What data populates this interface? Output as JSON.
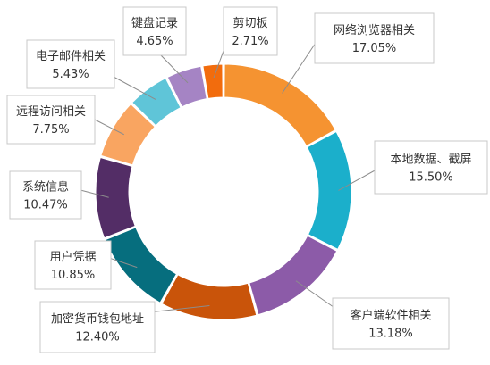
{
  "chart_data": {
    "type": "pie",
    "variant": "donut",
    "title": "",
    "legend": "none",
    "slices": [
      {
        "label": "网络浏览器相关",
        "value": 17.05,
        "display": "17.05%",
        "color": "#F59331"
      },
      {
        "label": "本地数据、截屏",
        "value": 15.5,
        "display": "15.50%",
        "color": "#1BAFCB"
      },
      {
        "label": "客户端软件相关",
        "value": 13.18,
        "display": "13.18%",
        "color": "#8C5BA8"
      },
      {
        "label": "加密货币钱包地址",
        "value": 12.4,
        "display": "12.40%",
        "color": "#C9540A"
      },
      {
        "label": "用户凭据",
        "value": 10.85,
        "display": "10.85%",
        "color": "#066E7E"
      },
      {
        "label": "系统信息",
        "value": 10.47,
        "display": "10.47%",
        "color": "#532D66"
      },
      {
        "label": "远程访问相关",
        "value": 7.75,
        "display": "7.75%",
        "color": "#F9A561"
      },
      {
        "label": "电子邮件相关",
        "value": 5.43,
        "display": "5.43%",
        "color": "#5FC5D8"
      },
      {
        "label": "键盘记录",
        "value": 4.65,
        "display": "4.65%",
        "color": "#A584C4"
      },
      {
        "label": "剪切板",
        "value": 2.71,
        "display": "2.71%",
        "color": "#F26C0D"
      }
    ]
  }
}
